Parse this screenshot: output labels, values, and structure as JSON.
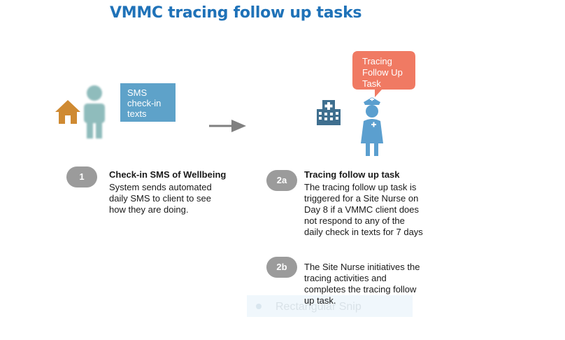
{
  "title": "VMMC tracing follow up tasks",
  "sms_box": {
    "line1": "SMS",
    "line2": "check-in",
    "line3": "texts"
  },
  "speech_bubble": {
    "line1": "Tracing",
    "line2": "Follow Up",
    "line3": "Task"
  },
  "steps": [
    {
      "badge": "1",
      "title": "Check-in SMS of Wellbeing",
      "lines": [
        "System sends automated",
        "daily SMS to client to see",
        "how  they are doing."
      ]
    },
    {
      "badge": "2a",
      "title": "Tracing follow up task",
      "lines": [
        "The tracing follow up task is",
        "triggered for a Site Nurse on",
        "Day 8 if a VMMC client does",
        "not respond to any of the",
        "daily check in texts for 7 days"
      ]
    },
    {
      "badge": "2b",
      "title": "",
      "lines": [
        "The Site Nurse initiatives the",
        "tracing activities and",
        "completes the tracing follow",
        "up task."
      ]
    }
  ],
  "overlay": {
    "label": "Rectangular Snip"
  },
  "colors": {
    "title": "#1f72b8",
    "sms_box": "#5ea2c9",
    "speech_bubble": "#f07a63",
    "badge": "#9b9b9b",
    "person": "#8fbcbc",
    "house": "#cf8a32",
    "nurse": "#5b9fcf",
    "hospital": "#3f6f8f"
  },
  "icons": [
    "house-icon",
    "person-icon",
    "arrow-right-icon",
    "hospital-icon",
    "nurse-icon"
  ]
}
